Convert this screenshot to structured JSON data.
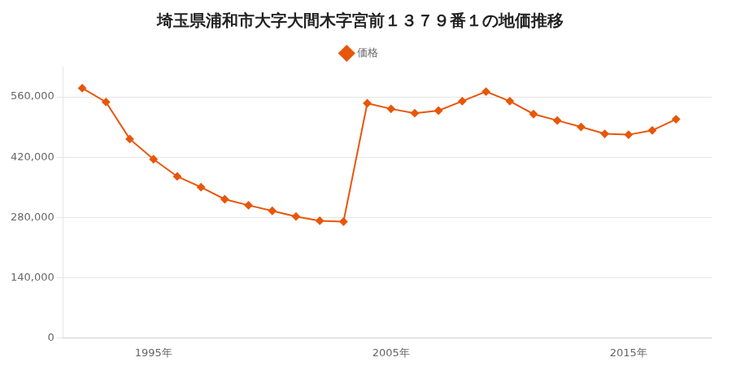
{
  "chart_data": {
    "type": "line",
    "title": "埼玉県浦和市大字大間木字宮前１３７９番１の地価推移",
    "x": [
      1992,
      1993,
      1994,
      1995,
      1996,
      1997,
      1998,
      1999,
      2000,
      2001,
      2002,
      2003,
      2004,
      2005,
      2006,
      2007,
      2008,
      2009,
      2010,
      2011,
      2012,
      2013,
      2014,
      2015,
      2016,
      2017
    ],
    "series": [
      {
        "name": "価格",
        "color": "#e8560a",
        "marker": "diamond",
        "values": [
          580000,
          548000,
          462000,
          415000,
          375000,
          350000,
          322000,
          308000,
          295000,
          282000,
          272000,
          270000,
          545000,
          532000,
          522000,
          528000,
          550000,
          572000,
          550000,
          520000,
          505000,
          490000,
          474000,
          472000,
          482000,
          508000
        ]
      }
    ],
    "xlim": [
      1991.2,
      2018.5
    ],
    "xticks": [
      {
        "value": 1995,
        "label": "1995年"
      },
      {
        "value": 2005,
        "label": "2005年"
      },
      {
        "value": 2015,
        "label": "2015年"
      }
    ],
    "ylim": [
      0,
      630000
    ],
    "yticks": [
      0,
      {
        "value": 140000,
        "label": "140,000"
      },
      {
        "value": 280000,
        "label": "280,000"
      },
      {
        "value": 420000,
        "label": "420,000"
      },
      {
        "value": 560000,
        "label": "560,000"
      }
    ],
    "grid": "y",
    "legend": "top"
  }
}
